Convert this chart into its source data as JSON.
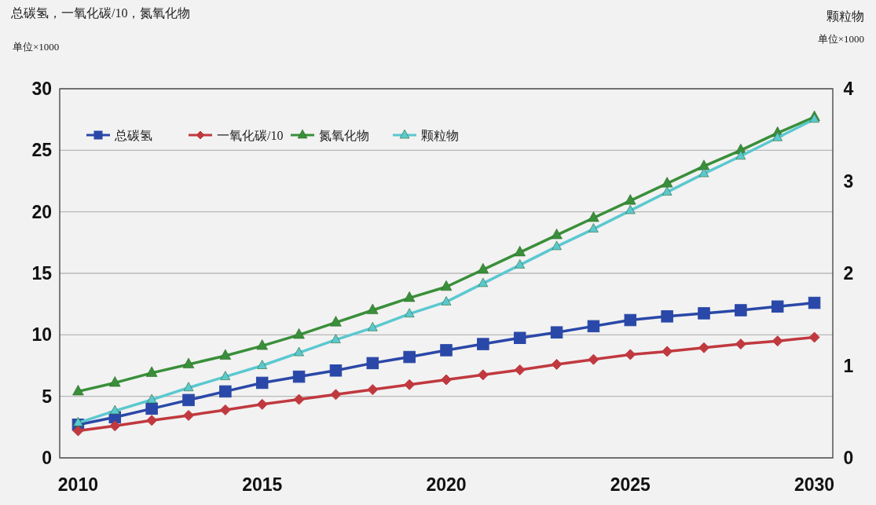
{
  "chart_data": {
    "type": "line",
    "ylabel": "总碳氢，一氧化碳/10，氮氧化物",
    "y2label": "颗粒物",
    "annotations": [
      "单位×1000",
      "单位×1000"
    ],
    "x": [
      2010,
      2011,
      2012,
      2013,
      2014,
      2015,
      2016,
      2017,
      2018,
      2019,
      2020,
      2021,
      2022,
      2023,
      2024,
      2025,
      2026,
      2027,
      2028,
      2029,
      2030
    ],
    "xlim": [
      2009.5,
      2030.5
    ],
    "xticks": [
      2010,
      2015,
      2020,
      2025,
      2030
    ],
    "ylim": [
      0,
      30
    ],
    "yticks": [
      0,
      5,
      10,
      15,
      20,
      25,
      30
    ],
    "y2lim": [
      0,
      4
    ],
    "y2ticks": [
      0,
      1,
      2,
      3,
      4
    ],
    "grid": "y",
    "legend": "top left",
    "line_style": "solid",
    "series": [
      {
        "name": "总碳氢",
        "color": "#2a48a8",
        "marker": "square",
        "values": [
          2.7,
          3.3,
          4.0,
          4.7,
          5.4,
          6.1,
          6.6,
          7.1,
          7.7,
          8.2,
          8.75,
          9.25,
          9.75,
          10.2,
          10.7,
          11.2,
          11.5,
          11.75,
          12.0,
          12.3,
          12.6
        ]
      },
      {
        "name": "一氧化碳/10",
        "color": "#c0393f",
        "marker": "diamond",
        "values": [
          2.2,
          2.6,
          3.05,
          3.45,
          3.9,
          4.35,
          4.75,
          5.15,
          5.55,
          5.95,
          6.35,
          6.75,
          7.15,
          7.6,
          8.0,
          8.4,
          8.65,
          8.95,
          9.25,
          9.5,
          9.8
        ]
      },
      {
        "name": "氮氧化物",
        "color": "#3a8f3a",
        "marker": "triangle",
        "values": [
          5.4,
          6.1,
          6.9,
          7.6,
          8.3,
          9.1,
          10.0,
          11.0,
          12.0,
          13.0,
          13.9,
          15.3,
          16.7,
          18.1,
          19.5,
          20.9,
          22.3,
          23.7,
          25.0,
          26.4,
          27.7
        ]
      },
      {
        "name": "颗粒物",
        "color": "#5bc8d0",
        "marker": "triangle",
        "axis": "y2",
        "values": [
          0.38,
          0.51,
          0.63,
          0.76,
          0.88,
          1.0,
          1.14,
          1.28,
          1.41,
          1.56,
          1.69,
          1.89,
          2.09,
          2.29,
          2.48,
          2.68,
          2.88,
          3.08,
          3.27,
          3.47,
          3.67
        ]
      }
    ]
  }
}
